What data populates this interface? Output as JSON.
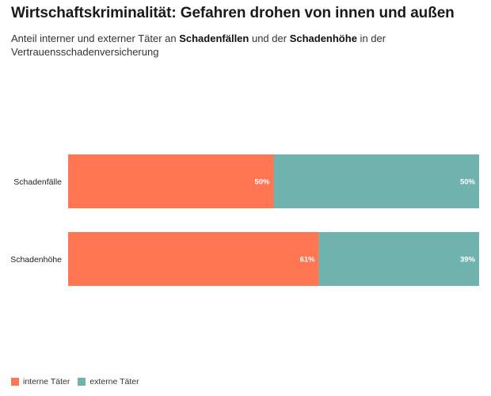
{
  "title": "Wirtschaftskriminalität: Gefahren drohen von innen und außen",
  "subtitle": {
    "part1": "Anteil interner und externer Täter an ",
    "bold1": "Schadenfällen",
    "part2": " und der ",
    "bold2": "Schadenhöhe",
    "part3": " in der Vertrauensschadenversicherung"
  },
  "colors": {
    "intern": "#ff7652",
    "extern": "#70b3ae"
  },
  "chart_data": {
    "type": "bar",
    "orientation": "horizontal",
    "stacked": true,
    "categories": [
      "Schadenfälle",
      "Schadenhöhe"
    ],
    "series": [
      {
        "name": "interne Täter",
        "values": [
          50,
          61
        ],
        "labels": [
          "50%",
          "61%"
        ]
      },
      {
        "name": "externe Täter",
        "values": [
          50,
          39
        ],
        "labels": [
          "50%",
          "39%"
        ]
      }
    ],
    "xlim": [
      0,
      100
    ],
    "unit": "%",
    "grid": false,
    "legend_position": "bottom-left"
  }
}
